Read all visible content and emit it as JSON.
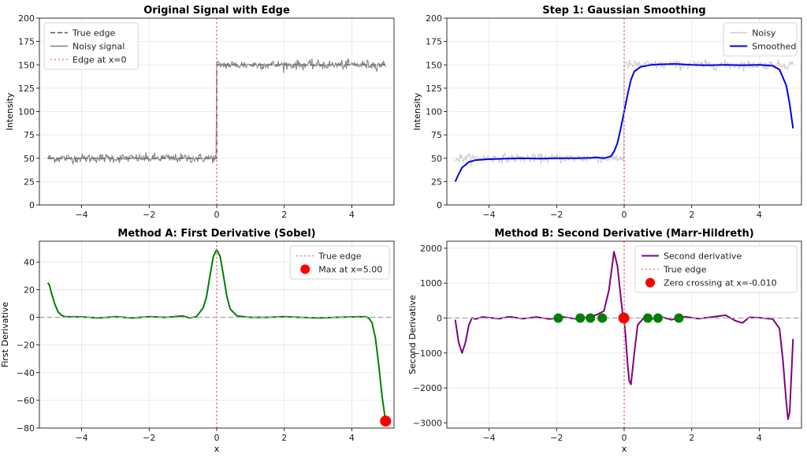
{
  "chart_data": [
    {
      "type": "line",
      "title": "Original Signal with Edge",
      "xlabel": "",
      "ylabel": "Intensity",
      "xlim": [
        -5.25,
        5.25
      ],
      "ylim": [
        0,
        200
      ],
      "xticks": [
        -4,
        -2,
        0,
        2,
        4
      ],
      "yticks": [
        0,
        25,
        50,
        75,
        100,
        125,
        150,
        175,
        200
      ],
      "grid": true,
      "legend_position": "upper-left",
      "legend": [
        "True edge",
        "Noisy signal",
        "Edge at x=0"
      ],
      "series": [
        {
          "name": "True edge",
          "style": "dashed",
          "color": "#555555",
          "x": [
            -5,
            0,
            0,
            5
          ],
          "y": [
            50,
            50,
            150,
            150
          ]
        },
        {
          "name": "Noisy signal",
          "style": "noisy",
          "color": "#808080",
          "x": [
            -5,
            0,
            0,
            5
          ],
          "y": [
            50,
            50,
            150,
            150
          ],
          "noise_sd": 2.5
        },
        {
          "name": "Edge at x=0",
          "style": "dotted-vertical",
          "color": "#f07f7f",
          "x": 0
        }
      ]
    },
    {
      "type": "line",
      "title": "Step 1: Gaussian Smoothing",
      "xlabel": "",
      "ylabel": "Intensity",
      "xlim": [
        -5.25,
        5.25
      ],
      "ylim": [
        0,
        200
      ],
      "xticks": [
        -4,
        -2,
        0,
        2,
        4
      ],
      "yticks": [
        0,
        25,
        50,
        75,
        100,
        125,
        150,
        175,
        200
      ],
      "grid": true,
      "legend_position": "upper-right",
      "legend": [
        "Noisy",
        "Smoothed"
      ],
      "series": [
        {
          "name": "Noisy",
          "style": "noisy",
          "color": "#cccccc",
          "x": [
            -5,
            0,
            0,
            5
          ],
          "y": [
            50,
            50,
            150,
            150
          ],
          "noise_sd": 2.5
        },
        {
          "name": "Smoothed",
          "style": "solid",
          "color": "#0000ee",
          "x": [
            -5,
            -4.9,
            -4.8,
            -4.6,
            -4.4,
            -4,
            -3.5,
            -3,
            -2.5,
            -2,
            -1.5,
            -1,
            -0.8,
            -0.6,
            -0.4,
            -0.3,
            -0.2,
            -0.1,
            0,
            0.1,
            0.2,
            0.3,
            0.5,
            0.8,
            1,
            1.5,
            2,
            2.5,
            3,
            3.5,
            4,
            4.4,
            4.6,
            4.8,
            4.9,
            5
          ],
          "y": [
            25,
            33,
            40,
            46,
            48,
            49,
            49.5,
            50,
            49.5,
            50,
            50,
            50.5,
            51,
            50,
            52,
            57,
            66,
            82,
            100,
            118,
            134,
            143,
            148,
            150,
            150.5,
            151,
            150,
            149.5,
            150,
            149.5,
            150,
            149,
            145,
            128,
            108,
            82
          ]
        },
        {
          "name": "edge",
          "style": "dotted-vertical",
          "color": "#f07f7f",
          "x": 0
        }
      ]
    },
    {
      "type": "line",
      "title": "Method A: First Derivative (Sobel)",
      "xlabel": "x",
      "ylabel": "First Derivative",
      "xlim": [
        -5.25,
        5.25
      ],
      "ylim": [
        -80,
        55
      ],
      "xticks": [
        -4,
        -2,
        0,
        2,
        4
      ],
      "yticks": [
        -80,
        -60,
        -40,
        -20,
        0,
        20,
        40
      ],
      "grid": true,
      "legend_position": "upper-right",
      "legend": [
        "True edge",
        "Max at x=5.00"
      ],
      "series": [
        {
          "name": "First derivative",
          "style": "solid",
          "color": "#008000",
          "x": [
            -5,
            -4.95,
            -4.9,
            -4.8,
            -4.7,
            -4.6,
            -4.5,
            -4,
            -3.5,
            -3,
            -2.5,
            -2,
            -1.5,
            -1,
            -0.8,
            -0.6,
            -0.4,
            -0.3,
            -0.2,
            -0.1,
            0,
            0.1,
            0.2,
            0.3,
            0.4,
            0.6,
            0.8,
            1,
            1.5,
            2,
            2.5,
            3,
            3.5,
            4,
            4.4,
            4.5,
            4.6,
            4.7,
            4.8,
            4.9,
            5
          ],
          "y": [
            25,
            23,
            18,
            10,
            4,
            1.5,
            0.5,
            0.3,
            -0.5,
            0.5,
            -0.5,
            0.5,
            0,
            1,
            -0.5,
            0.5,
            7,
            15,
            30,
            44,
            49,
            44,
            30,
            15,
            6,
            1,
            0.5,
            0,
            0,
            0.5,
            0,
            -0.5,
            0,
            0.3,
            0.5,
            -0.5,
            -4,
            -15,
            -35,
            -58,
            -75
          ]
        },
        {
          "name": "True edge",
          "style": "dotted-vertical",
          "color": "#f07f7f",
          "x": 0
        },
        {
          "name": "zero",
          "style": "dashed-horizontal",
          "color": "#aaaaaa",
          "y": 0
        },
        {
          "name": "Max at x=5.00",
          "style": "marker",
          "color": "#ff0000",
          "x": [
            5
          ],
          "y": [
            -75
          ]
        }
      ]
    },
    {
      "type": "line",
      "title": "Method B: Second Derivative (Marr-Hildreth)",
      "xlabel": "x",
      "ylabel": "Second Derivative",
      "xlim": [
        -5.25,
        5.25
      ],
      "ylim": [
        -3150,
        2200
      ],
      "xticks": [
        -4,
        -2,
        0,
        2,
        4
      ],
      "yticks": [
        -3000,
        -2000,
        -1000,
        0,
        1000,
        2000
      ],
      "grid": true,
      "legend_position": "upper-right",
      "legend": [
        "Second derivative",
        "True edge",
        "Zero crossing at x=-0.010"
      ],
      "series": [
        {
          "name": "Second derivative",
          "style": "solid",
          "color": "#800080",
          "x": [
            -5,
            -4.9,
            -4.8,
            -4.7,
            -4.6,
            -4.5,
            -4.4,
            -4.2,
            -4,
            -3.7,
            -3.4,
            -3,
            -2.6,
            -2.2,
            -1.8,
            -1.4,
            -1.0,
            -0.8,
            -0.6,
            -0.45,
            -0.3,
            -0.2,
            -0.1,
            -0.05,
            0,
            0.05,
            0.1,
            0.15,
            0.2,
            0.3,
            0.4,
            0.6,
            0.8,
            1.0,
            1.4,
            1.8,
            2.2,
            2.6,
            3.0,
            3.3,
            3.5,
            3.7,
            4.0,
            4.4,
            4.6,
            4.7,
            4.8,
            4.85,
            4.9,
            5
          ],
          "y": [
            -50,
            -700,
            -1000,
            -700,
            -200,
            10,
            -30,
            30,
            10,
            -20,
            40,
            -20,
            30,
            -30,
            30,
            -30,
            40,
            100,
            200,
            800,
            1900,
            1500,
            600,
            150,
            -50,
            -600,
            -1300,
            -1800,
            -1900,
            -1000,
            -200,
            30,
            -40,
            60,
            -50,
            40,
            -20,
            30,
            80,
            -80,
            -140,
            20,
            10,
            -30,
            -300,
            -1200,
            -2400,
            -2900,
            -2700,
            -600
          ]
        },
        {
          "name": "True edge",
          "style": "dotted-vertical",
          "color": "#f07f7f",
          "x": 0
        },
        {
          "name": "zero",
          "style": "dashed-horizontal",
          "color": "#aaaaaa",
          "y": 0
        },
        {
          "name": "crossings",
          "style": "marker-small",
          "color": "#008000",
          "x": [
            -1.95,
            -1.3,
            -1.0,
            -0.65,
            0.7,
            1.0,
            1.62
          ],
          "y": [
            0,
            0,
            0,
            0,
            0,
            0,
            0
          ]
        },
        {
          "name": "Zero crossing at x=-0.010",
          "style": "marker",
          "color": "#ff0000",
          "x": [
            -0.01
          ],
          "y": [
            0
          ]
        }
      ]
    }
  ]
}
